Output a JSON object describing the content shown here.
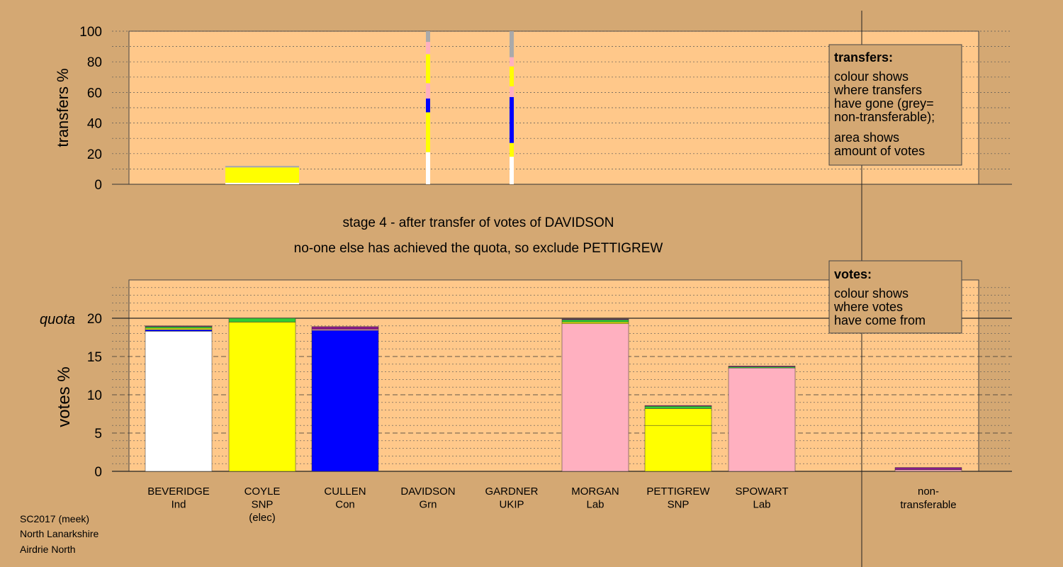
{
  "stage_title": "stage 4 - after transfer of votes of DAVIDSON",
  "stage_subtitle": "no-one else has achieved the quota, so exclude PETTIGREW",
  "footer": {
    "line1": "SC2017 (meek)",
    "line2": "North Lanarkshire",
    "line3": "Airdrie North"
  },
  "legend_transfers": {
    "title": "transfers:",
    "lines": [
      "colour shows",
      "where transfers",
      "have gone (grey=",
      "non-transferable);",
      "area shows",
      "amount of votes"
    ]
  },
  "legend_votes": {
    "title": "votes:",
    "lines": [
      "colour shows",
      "where votes",
      "have come from"
    ]
  },
  "colors": {
    "background": "#d4a873",
    "panel": "#ffc88a",
    "Ind": "#ffffff",
    "SNP": "#ffff00",
    "Con": "#0000ff",
    "Lab": "#ffb0c0",
    "Grn": "#33cc33",
    "UKIP": "#8a1b8a",
    "nontransferable": "#aaaaaa"
  },
  "chart_data": [
    {
      "type": "bar",
      "id": "transfers",
      "ylabel": "transfers %",
      "ylim": [
        0,
        100
      ],
      "yticks": [
        0,
        20,
        40,
        60,
        80,
        100
      ],
      "grid": "dotted every 10",
      "categories": [
        "BEVERIDGE",
        "COYLE",
        "CULLEN",
        "DAVIDSON",
        "GARDNER",
        "MORGAN",
        "PETTIGREW",
        "SPOWART"
      ],
      "bars": [
        {
          "category": "COYLE",
          "width_class": "wide",
          "segments": [
            {
              "party": "Ind",
              "from": 0,
              "to": 1
            },
            {
              "party": "SNP",
              "from": 1,
              "to": 11
            },
            {
              "party": "nontransferable",
              "from": 11,
              "to": 12
            }
          ]
        },
        {
          "category": "DAVIDSON",
          "width_class": "thin",
          "segments": [
            {
              "party": "Ind",
              "from": 0,
              "to": 21
            },
            {
              "party": "SNP",
              "from": 21,
              "to": 47
            },
            {
              "party": "Con",
              "from": 47,
              "to": 56
            },
            {
              "party": "Lab",
              "from": 56,
              "to": 66
            },
            {
              "party": "SNP",
              "from": 66,
              "to": 85
            },
            {
              "party": "Lab",
              "from": 85,
              "to": 93
            },
            {
              "party": "nontransferable",
              "from": 93,
              "to": 100
            }
          ]
        },
        {
          "category": "GARDNER",
          "width_class": "thin",
          "segments": [
            {
              "party": "Ind",
              "from": 0,
              "to": 18
            },
            {
              "party": "SNP",
              "from": 18,
              "to": 27
            },
            {
              "party": "Con",
              "from": 27,
              "to": 57
            },
            {
              "party": "Lab",
              "from": 57,
              "to": 64
            },
            {
              "party": "SNP",
              "from": 64,
              "to": 77
            },
            {
              "party": "Lab",
              "from": 77,
              "to": 83
            },
            {
              "party": "nontransferable",
              "from": 83,
              "to": 100
            }
          ]
        }
      ]
    },
    {
      "type": "bar",
      "id": "votes",
      "ylabel": "votes %",
      "quota_label": "quota",
      "quota": 20,
      "ylim": [
        0,
        25
      ],
      "yticks": [
        0,
        5,
        10,
        15,
        20
      ],
      "grid": "dashed every 5, dotted every 1",
      "candidates": [
        {
          "name": "BEVERIDGE",
          "party": "Ind",
          "note": "",
          "segments": [
            {
              "party": "Ind",
              "from": 0,
              "to": 18.3
            },
            {
              "party": "Con",
              "from": 18.3,
              "to": 18.5
            },
            {
              "party": "SNP",
              "from": 18.5,
              "to": 18.7
            },
            {
              "party": "Grn",
              "from": 18.7,
              "to": 18.9
            },
            {
              "party": "UKIP",
              "from": 18.9,
              "to": 19.0
            }
          ]
        },
        {
          "name": "COYLE",
          "party": "SNP",
          "note": "(elec)",
          "segments": [
            {
              "party": "SNP",
              "from": 0,
              "to": 19.5
            },
            {
              "party": "Grn",
              "from": 19.5,
              "to": 20.0
            }
          ]
        },
        {
          "name": "CULLEN",
          "party": "Con",
          "note": "",
          "segments": [
            {
              "party": "Con",
              "from": 0,
              "to": 18.4
            },
            {
              "party": "Lab",
              "from": 18.4,
              "to": 18.55
            },
            {
              "party": "UKIP",
              "from": 18.55,
              "to": 18.9
            }
          ]
        },
        {
          "name": "DAVIDSON",
          "party": "Grn",
          "note": "",
          "segments": []
        },
        {
          "name": "GARDNER",
          "party": "UKIP",
          "note": "",
          "segments": []
        },
        {
          "name": "MORGAN",
          "party": "Lab",
          "note": "",
          "segments": [
            {
              "party": "Lab",
              "from": 0,
              "to": 19.3
            },
            {
              "party": "SNP",
              "from": 19.3,
              "to": 19.5
            },
            {
              "party": "Grn",
              "from": 19.5,
              "to": 19.8
            },
            {
              "party": "UKIP",
              "from": 19.8,
              "to": 19.9
            }
          ]
        },
        {
          "name": "PETTIGREW",
          "party": "SNP",
          "note": "",
          "segments": [
            {
              "party": "SNP",
              "from": 0,
              "to": 6.0
            },
            {
              "party": "SNP",
              "from": 6.0,
              "to": 8.2
            },
            {
              "party": "Grn",
              "from": 8.2,
              "to": 8.5
            },
            {
              "party": "UKIP",
              "from": 8.5,
              "to": 8.6
            }
          ]
        },
        {
          "name": "SPOWART",
          "party": "Lab",
          "note": "",
          "segments": [
            {
              "party": "Lab",
              "from": 0,
              "to": 13.5
            },
            {
              "party": "Grn",
              "from": 13.5,
              "to": 13.65
            },
            {
              "party": "UKIP",
              "from": 13.65,
              "to": 13.75
            }
          ]
        }
      ],
      "nontransferable": {
        "label_line1": "non-",
        "label_line2": "transferable",
        "segments": [
          {
            "party": "Lab",
            "from": 0,
            "to": 0.2
          },
          {
            "party": "UKIP",
            "from": 0.2,
            "to": 0.5
          }
        ]
      }
    }
  ]
}
